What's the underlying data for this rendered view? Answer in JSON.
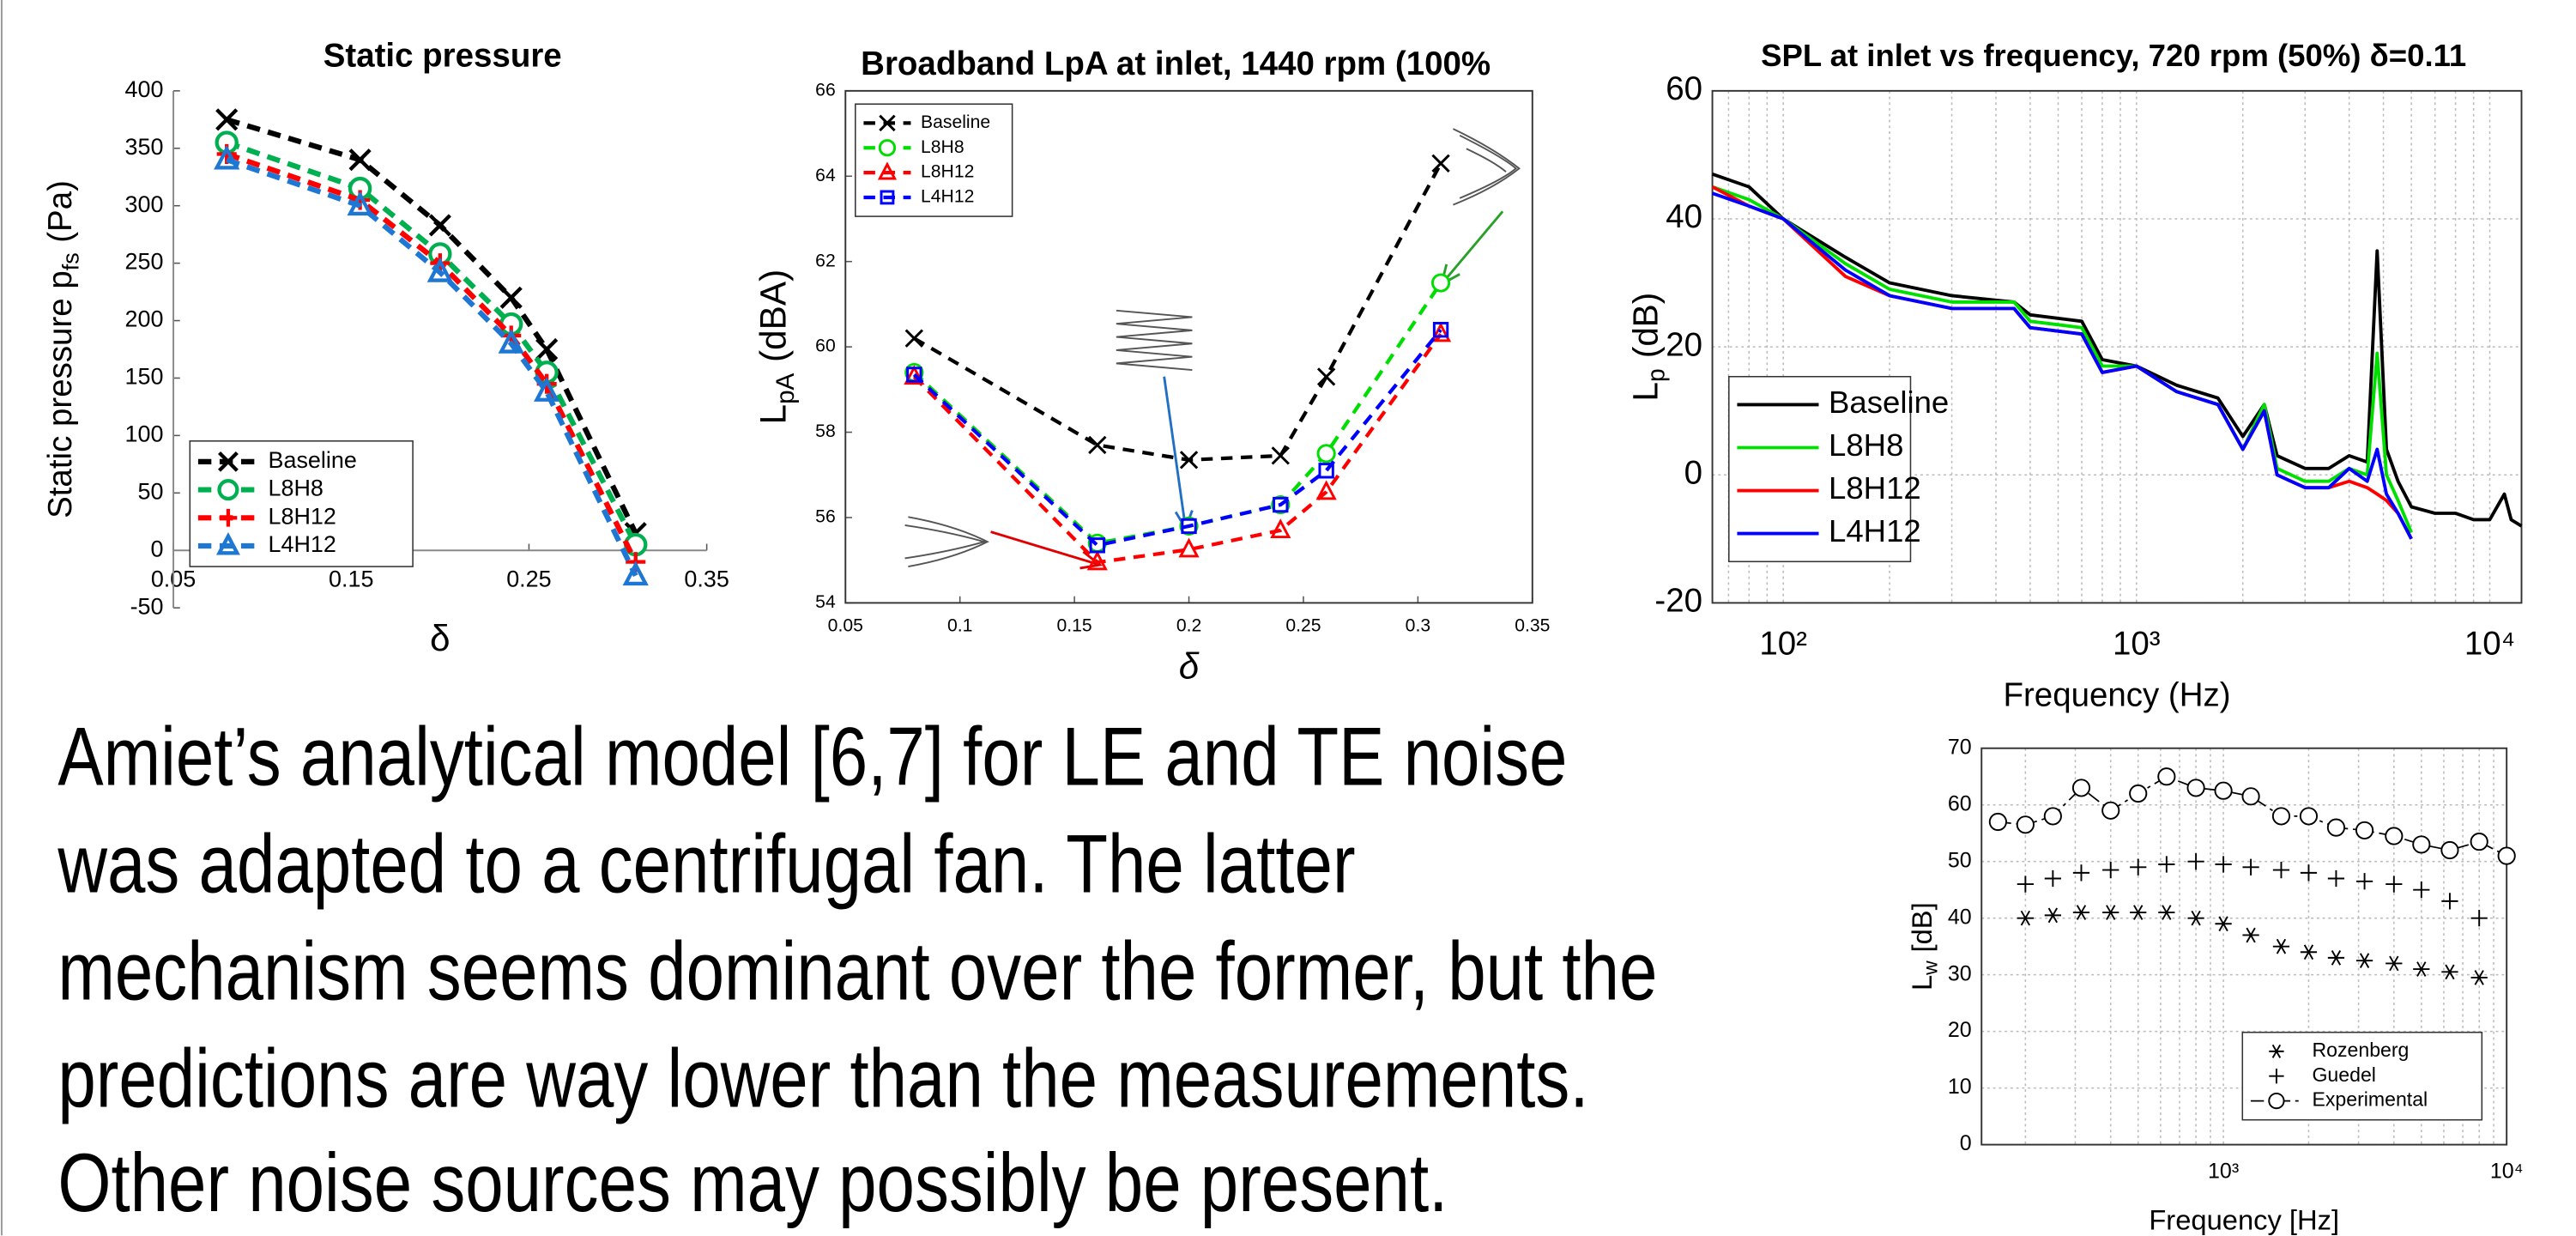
{
  "chart_data": [
    {
      "type": "line",
      "title": "Static pressure",
      "xlabel": "δ",
      "ylabel": {
        "text": "Static pressure  p",
        "sub": "fs",
        "rest": "(Pa)"
      },
      "x": [
        0.08,
        0.155,
        0.2,
        0.24,
        0.26,
        0.31
      ],
      "series": [
        {
          "name": "Baseline",
          "color": "#000000",
          "marker": "x",
          "dash": "dashed",
          "values": [
            375,
            340,
            283,
            220,
            175,
            15
          ]
        },
        {
          "name": "L8H8",
          "color": "#00b050",
          "marker": "o",
          "dash": "dashed",
          "values": [
            355,
            315,
            258,
            197,
            155,
            5
          ]
        },
        {
          "name": "L8H12",
          "color": "#ff0000",
          "marker": "+",
          "dash": "dashed",
          "values": [
            345,
            305,
            250,
            187,
            145,
            -10
          ]
        },
        {
          "name": "L4H12",
          "color": "#1f77d4",
          "marker": "^",
          "dash": "dashed",
          "values": [
            340,
            300,
            242,
            180,
            138,
            -22
          ]
        }
      ],
      "xlim": [
        0.05,
        0.35
      ],
      "xticks": [
        0.05,
        0.15,
        0.25,
        0.35
      ],
      "ylim": [
        -50,
        400
      ],
      "yticks": [
        -50,
        0,
        50,
        100,
        150,
        200,
        250,
        300,
        350,
        400
      ],
      "log_x": false,
      "grid": false,
      "axis_at_zero": true,
      "legend": "lower left"
    },
    {
      "type": "line",
      "title": "Broadband LpA at inlet, 1440 rpm (100%",
      "xlabel": "δ",
      "ylabel": {
        "text": "L",
        "sub": "pA",
        "rest": "(dBA)"
      },
      "x": [
        0.08,
        0.16,
        0.2,
        0.24,
        0.26,
        0.31
      ],
      "series": [
        {
          "name": "Baseline",
          "color": "#000000",
          "marker": "x",
          "dash": "dashed",
          "values": [
            60.2,
            57.7,
            57.35,
            57.45,
            59.3,
            64.3
          ]
        },
        {
          "name": "L8H8",
          "color": "#00dd00",
          "marker": "o",
          "dash": "dashed",
          "values": [
            59.4,
            55.4,
            55.8,
            56.3,
            57.5,
            61.5
          ]
        },
        {
          "name": "L8H12",
          "color": "#ff0000",
          "marker": "^",
          "dash": "dashed",
          "values": [
            59.3,
            54.95,
            55.25,
            55.7,
            56.6,
            60.3
          ]
        },
        {
          "name": "L4H12",
          "color": "#0000ff",
          "marker": "s",
          "dash": "dashed",
          "values": [
            59.35,
            55.35,
            55.8,
            56.3,
            57.1,
            60.4
          ]
        }
      ],
      "xlim": [
        0.05,
        0.35
      ],
      "xticks": [
        0.05,
        0.1,
        0.15,
        0.2,
        0.25,
        0.3,
        0.35
      ],
      "ylim": [
        54,
        66
      ],
      "yticks": [
        54,
        56,
        58,
        60,
        62,
        64,
        66
      ],
      "log_x": false,
      "grid": false,
      "axis_at_zero": false,
      "legend": "upper left"
    },
    {
      "type": "line",
      "title": "SPL at inlet vs frequency, 720 rpm (50%) δ=0.11",
      "xlabel": "Frequency (Hz)",
      "ylabel": {
        "text": "L",
        "sub": "p",
        "rest": "(dB)"
      },
      "series": [
        {
          "name": "Baseline",
          "color": "#000000",
          "marker": "none",
          "dash": "solid",
          "x": [
            63,
            80,
            100,
            150,
            200,
            300,
            450,
            500,
            700,
            800,
            1000,
            1300,
            1700,
            2000,
            2300,
            2500,
            3000,
            3500,
            4000,
            4500,
            4800,
            5100,
            5500,
            6000,
            7000,
            8000,
            9000,
            10000,
            11000,
            11500,
            12300
          ],
          "values": [
            47,
            45,
            40,
            34,
            30,
            28,
            27,
            25,
            24,
            18,
            17,
            14,
            12,
            6,
            11,
            3,
            1,
            1,
            3,
            2,
            35,
            4,
            -1,
            -5,
            -6,
            -6,
            -7,
            -7,
            -3,
            -7,
            -8
          ]
        },
        {
          "name": "L8H8",
          "color": "#00e000",
          "marker": "none",
          "dash": "solid",
          "x": [
            63,
            80,
            100,
            150,
            200,
            300,
            450,
            500,
            700,
            800,
            1000,
            1300,
            1700,
            2000,
            2300,
            2500,
            3000,
            3500,
            4000,
            4500,
            4800,
            5100,
            5500,
            6000
          ],
          "values": [
            45,
            43,
            40,
            33,
            29,
            27,
            27,
            24,
            23,
            17,
            17,
            13,
            11,
            4,
            11,
            1,
            -1,
            -1,
            1,
            0,
            19,
            0,
            -4,
            -9
          ]
        },
        {
          "name": "L8H12",
          "color": "#ff0000",
          "marker": "none",
          "dash": "solid",
          "x": [
            63,
            80,
            100,
            150,
            200,
            300,
            450,
            500,
            700,
            800,
            1000,
            1300,
            1700,
            2000,
            2300,
            2500,
            3000,
            3500,
            4000,
            4500,
            4800,
            5100,
            5500,
            6000
          ],
          "values": [
            45,
            42,
            40,
            31,
            28,
            26,
            26,
            23,
            22,
            16,
            17,
            13,
            11,
            4,
            10,
            0,
            -2,
            -2,
            -1,
            -2,
            -3,
            -4,
            -6,
            -10
          ]
        },
        {
          "name": "L4H12",
          "color": "#0000ff",
          "marker": "none",
          "dash": "solid",
          "x": [
            63,
            80,
            100,
            150,
            200,
            300,
            450,
            500,
            700,
            800,
            1000,
            1300,
            1700,
            2000,
            2300,
            2500,
            3000,
            3500,
            4000,
            4500,
            4800,
            5100,
            5500,
            6000
          ],
          "values": [
            44,
            42,
            40,
            32,
            28,
            26,
            26,
            23,
            22,
            16,
            17,
            13,
            11,
            4,
            10,
            0,
            -2,
            -2,
            1,
            -1,
            4,
            -3,
            -6,
            -10
          ]
        }
      ],
      "xlim": [
        63,
        12300
      ],
      "xticks": [
        {
          "value": 100,
          "label": "10²"
        },
        {
          "value": 1000,
          "label": "10³"
        },
        {
          "value": 10000,
          "label": "10⁴"
        }
      ],
      "ylim": [
        -20,
        60
      ],
      "yticks": [
        -20,
        0,
        20,
        40,
        60
      ],
      "log_x": true,
      "grid": true,
      "axis_at_zero": false,
      "legend": "lower left"
    },
    {
      "type": "line",
      "xlabel": "Frequency [Hz]",
      "ylabel": {
        "text": "L",
        "sub": "w",
        "rest": "[dB]"
      },
      "x": [
        160,
        200,
        250,
        315,
        400,
        500,
        630,
        800,
        1000,
        1250,
        1600,
        2000,
        2500,
        3150,
        4000,
        5000,
        6300,
        8000,
        10000
      ],
      "series": [
        {
          "name": "Rozenberg",
          "color": "#000000",
          "marker": "*",
          "dash": "none",
          "values": [
            null,
            40,
            40.5,
            41,
            41,
            41,
            41,
            40,
            39,
            37,
            35,
            34,
            33,
            32.5,
            32,
            31,
            30.5,
            29.5,
            null
          ]
        },
        {
          "name": "Guedel",
          "color": "#000000",
          "marker": "+",
          "dash": "none",
          "values": [
            null,
            46,
            47,
            48,
            48.5,
            49,
            49.5,
            50,
            49.5,
            49,
            48.5,
            48,
            47,
            46.5,
            46,
            45,
            43,
            40,
            null
          ]
        },
        {
          "name": "Experimental",
          "color": "#000000",
          "marker": "o",
          "dash": "dashdot",
          "values": [
            57,
            56.5,
            58,
            63,
            59,
            62,
            65,
            63,
            62.5,
            61.5,
            58,
            58,
            56,
            55.5,
            54.5,
            53,
            52,
            53.5,
            51
          ]
        }
      ],
      "xlim": [
        140,
        10000
      ],
      "xticks": [
        {
          "value": 1000,
          "label": "10³"
        },
        {
          "value": 10000,
          "label": "10⁴"
        }
      ],
      "ylim": [
        0,
        70
      ],
      "yticks": [
        0,
        10,
        20,
        30,
        40,
        50,
        60,
        70
      ],
      "log_x": true,
      "grid": true,
      "axis_at_zero": false,
      "legend": "lower right"
    }
  ],
  "paragraph": [
    "Amiet’s analytical model [6,7] for LE and TE noise",
    "was adapted to a centrifugal fan. The latter",
    "mechanism seems dominant over the former, but the",
    "predictions are way lower than the measurements.",
    "Other noise sources may possibly be present."
  ]
}
